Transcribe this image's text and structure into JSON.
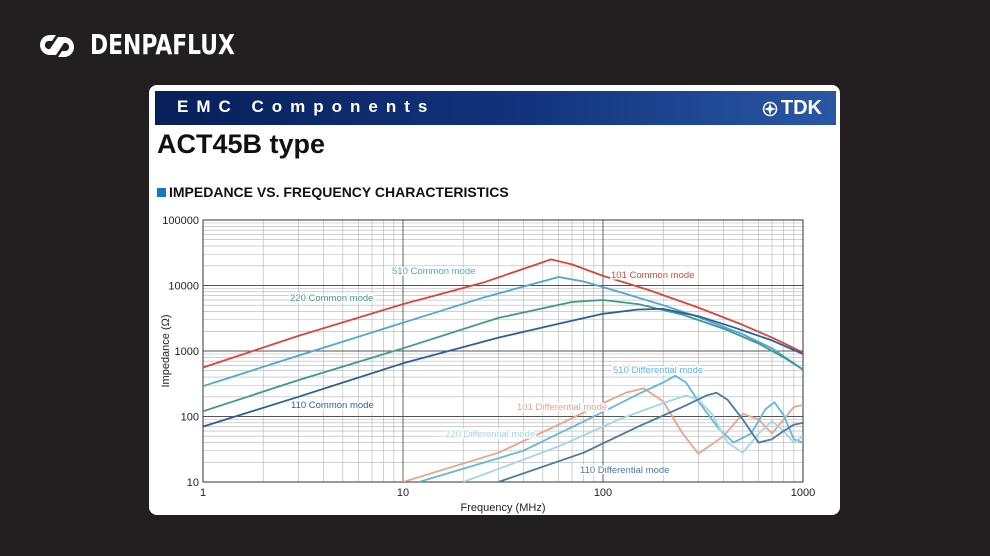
{
  "brand": {
    "name": "DENPAFLUX"
  },
  "banner": {
    "title": "EMC Components",
    "logo_text": "TDK"
  },
  "page_title": "ACT45B type",
  "section_title": "IMPEDANCE VS. FREQUENCY CHARACTERISTICS",
  "chart_data": {
    "type": "line",
    "x_scale": "log",
    "y_scale": "log",
    "xlim": [
      1,
      1000
    ],
    "ylim": [
      10,
      100000
    ],
    "xlabel": "Frequency (MHz)",
    "ylabel": "Impedance (Ω)",
    "x_ticks": [
      "1",
      "10",
      "100",
      "1000"
    ],
    "y_ticks": [
      "10",
      "100",
      "1000",
      "10000",
      "100000"
    ],
    "grid": true,
    "series": [
      {
        "name": "101 Common mode",
        "color": "#d9473a",
        "points": [
          [
            1,
            560
          ],
          [
            3,
            1700
          ],
          [
            10,
            5200
          ],
          [
            25,
            11000
          ],
          [
            55,
            25000
          ],
          [
            70,
            21000
          ],
          [
            100,
            14000
          ],
          [
            170,
            8500
          ],
          [
            300,
            4600
          ],
          [
            500,
            2500
          ],
          [
            700,
            1600
          ],
          [
            1000,
            950
          ]
        ]
      },
      {
        "name": "510 Common mode",
        "color": "#4fa6d8",
        "points": [
          [
            1,
            290
          ],
          [
            3,
            850
          ],
          [
            10,
            2700
          ],
          [
            25,
            6500
          ],
          [
            60,
            13500
          ],
          [
            80,
            11500
          ],
          [
            120,
            8000
          ],
          [
            200,
            5000
          ],
          [
            300,
            3300
          ],
          [
            500,
            1800
          ],
          [
            700,
            1100
          ],
          [
            1000,
            520
          ]
        ]
      },
      {
        "name": "220 Common mode",
        "color": "#3e9b86",
        "points": [
          [
            1,
            120
          ],
          [
            3,
            360
          ],
          [
            10,
            1100
          ],
          [
            30,
            3200
          ],
          [
            70,
            5600
          ],
          [
            100,
            6000
          ],
          [
            150,
            5200
          ],
          [
            250,
            3600
          ],
          [
            400,
            2200
          ],
          [
            600,
            1300
          ],
          [
            800,
            800
          ],
          [
            1000,
            520
          ]
        ]
      },
      {
        "name": "110 Common mode",
        "color": "#2c5f9e",
        "points": [
          [
            1,
            70
          ],
          [
            3,
            200
          ],
          [
            10,
            650
          ],
          [
            30,
            1600
          ],
          [
            60,
            2600
          ],
          [
            100,
            3700
          ],
          [
            150,
            4300
          ],
          [
            200,
            4400
          ],
          [
            300,
            3400
          ],
          [
            450,
            2300
          ],
          [
            700,
            1450
          ],
          [
            1000,
            900
          ]
        ]
      },
      {
        "name": "101 Differential mode",
        "color": "#eea288",
        "points": [
          [
            10,
            10
          ],
          [
            30,
            28
          ],
          [
            60,
            75
          ],
          [
            100,
            160
          ],
          [
            130,
            230
          ],
          [
            160,
            270
          ],
          [
            200,
            170
          ],
          [
            250,
            55
          ],
          [
            300,
            27
          ],
          [
            400,
            50
          ],
          [
            500,
            110
          ],
          [
            600,
            90
          ],
          [
            700,
            55
          ],
          [
            800,
            90
          ],
          [
            900,
            140
          ],
          [
            1000,
            150
          ]
        ]
      },
      {
        "name": "510 Differential mode",
        "color": "#61b7e3",
        "points": [
          [
            12,
            10
          ],
          [
            40,
            30
          ],
          [
            90,
            100
          ],
          [
            150,
            220
          ],
          [
            200,
            330
          ],
          [
            230,
            420
          ],
          [
            260,
            330
          ],
          [
            300,
            170
          ],
          [
            380,
            65
          ],
          [
            450,
            40
          ],
          [
            550,
            55
          ],
          [
            650,
            130
          ],
          [
            720,
            165
          ],
          [
            800,
            105
          ],
          [
            900,
            45
          ],
          [
            1000,
            40
          ]
        ]
      },
      {
        "name": "220 Differential mode",
        "color": "#a5d6e2",
        "points": [
          [
            20,
            10
          ],
          [
            60,
            35
          ],
          [
            120,
            90
          ],
          [
            200,
            160
          ],
          [
            260,
            210
          ],
          [
            300,
            180
          ],
          [
            350,
            110
          ],
          [
            420,
            40
          ],
          [
            500,
            28
          ],
          [
            600,
            55
          ],
          [
            700,
            85
          ],
          [
            800,
            60
          ],
          [
            900,
            40
          ],
          [
            1000,
            50
          ]
        ]
      },
      {
        "name": "110 Differential mode",
        "color": "#4a78a8",
        "points": [
          [
            30,
            10
          ],
          [
            80,
            28
          ],
          [
            150,
            70
          ],
          [
            250,
            140
          ],
          [
            330,
            210
          ],
          [
            370,
            230
          ],
          [
            420,
            180
          ],
          [
            500,
            90
          ],
          [
            600,
            40
          ],
          [
            700,
            45
          ],
          [
            800,
            60
          ],
          [
            900,
            75
          ],
          [
            1000,
            80
          ]
        ]
      }
    ]
  }
}
